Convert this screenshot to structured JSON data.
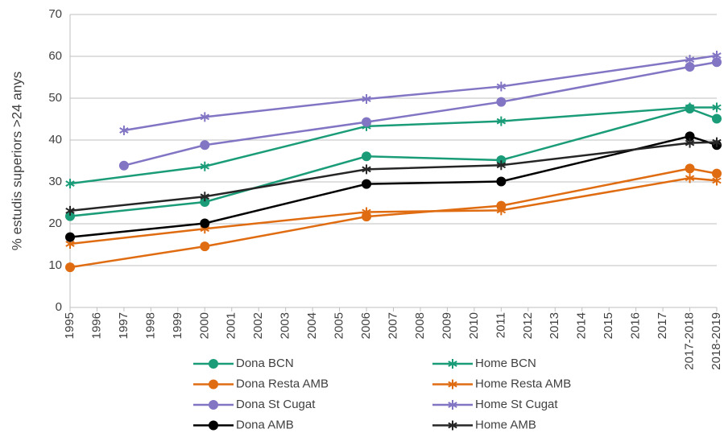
{
  "chart_data": {
    "type": "line",
    "y_label": "% estudis superiors >24 anys",
    "categories": [
      "1995",
      "1996",
      "1997",
      "1998",
      "1999",
      "2000",
      "2001",
      "2002",
      "2003",
      "2004",
      "2005",
      "2006",
      "2007",
      "2008",
      "2009",
      "2010",
      "2011",
      "2012",
      "2013",
      "2014",
      "2015",
      "2016",
      "2017",
      "2017-2018",
      "2018-2019"
    ],
    "ylim": [
      0,
      70
    ],
    "yticks": [
      0,
      10,
      20,
      30,
      40,
      50,
      60,
      70
    ],
    "grid": true,
    "series": [
      {
        "name": "Dona BCN",
        "color": "#1a9c78",
        "marker": "circle",
        "x": [
          "1995",
          "2000",
          "2006",
          "2011",
          "2017-2018",
          "2018-2019"
        ],
        "values": [
          21.8,
          25.2,
          36.1,
          35.2,
          47.5,
          45.1
        ]
      },
      {
        "name": "Home BCN",
        "color": "#1a9c78",
        "marker": "star",
        "x": [
          "1995",
          "2000",
          "2006",
          "2011",
          "2017-2018",
          "2018-2019"
        ],
        "values": [
          29.6,
          33.7,
          43.3,
          44.5,
          47.8,
          47.8
        ]
      },
      {
        "name": "Dona Resta AMB",
        "color": "#e06c12",
        "marker": "circle",
        "x": [
          "1995",
          "2000",
          "2006",
          "2011",
          "2017-2018",
          "2018-2019"
        ],
        "values": [
          9.6,
          14.6,
          21.7,
          24.3,
          33.2,
          32.0
        ]
      },
      {
        "name": "Home Resta AMB",
        "color": "#e06c12",
        "marker": "star",
        "x": [
          "1995",
          "2000",
          "2006",
          "2011",
          "2017-2018",
          "2018-2019"
        ],
        "values": [
          15.2,
          18.8,
          22.8,
          23.2,
          30.9,
          30.3
        ]
      },
      {
        "name": "Dona St Cugat",
        "color": "#8275c4",
        "marker": "circle",
        "x": [
          "1997",
          "2000",
          "2006",
          "2011",
          "2017-2018",
          "2018-2019"
        ],
        "values": [
          33.9,
          38.8,
          44.3,
          49.1,
          57.5,
          58.6
        ]
      },
      {
        "name": "Home St Cugat",
        "color": "#8275c4",
        "marker": "star",
        "x": [
          "1997",
          "2000",
          "2006",
          "2011",
          "2017-2018",
          "2018-2019"
        ],
        "values": [
          42.3,
          45.5,
          49.8,
          52.8,
          59.2,
          60.2
        ]
      },
      {
        "name": "Dona AMB",
        "color": "#000000",
        "marker": "circle",
        "x": [
          "1995",
          "2000",
          "2006",
          "2011",
          "2017-2018",
          "2018-2019"
        ],
        "values": [
          16.8,
          20.1,
          29.5,
          30.1,
          40.9,
          38.8
        ]
      },
      {
        "name": "Home AMB",
        "color": "#262626",
        "marker": "star",
        "x": [
          "1995",
          "2000",
          "2006",
          "2011",
          "2017-2018",
          "2018-2019"
        ],
        "values": [
          23.1,
          26.5,
          33.0,
          34.0,
          39.3,
          39.5
        ]
      }
    ]
  }
}
